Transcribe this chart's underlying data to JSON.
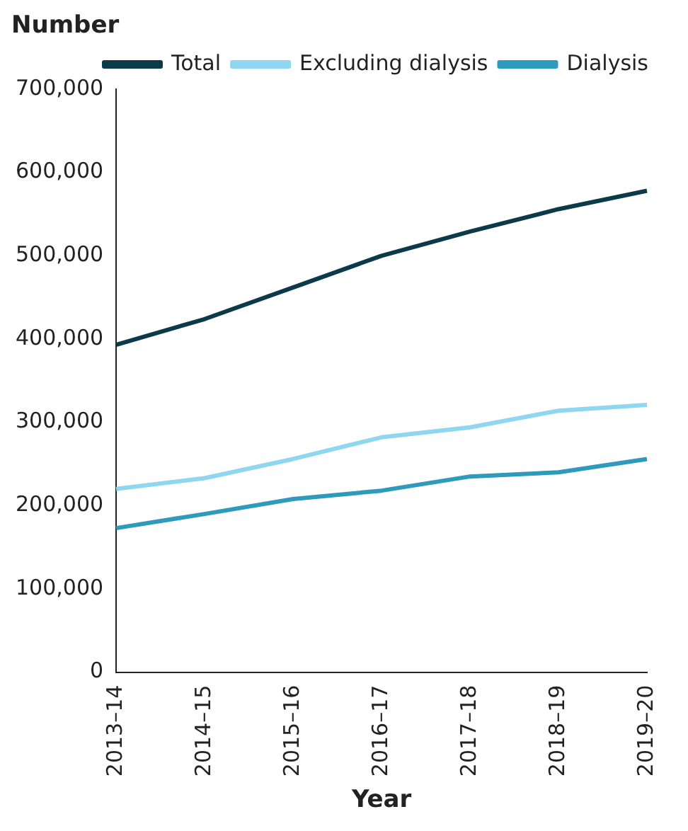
{
  "chart_data": {
    "type": "line",
    "ylabel": "Number",
    "xlabel": "Year",
    "categories": [
      "2013–14",
      "2014–15",
      "2015–16",
      "2016–17",
      "2017–18",
      "2018–19",
      "2019–20"
    ],
    "series": [
      {
        "name": "Total",
        "color": "#0b3a4a",
        "values": [
          393000,
          424000,
          462000,
          500000,
          529000,
          556000,
          578000
        ]
      },
      {
        "name": "Excluding dialysis",
        "color": "#8fd6f0",
        "values": [
          220000,
          233000,
          256000,
          282000,
          294000,
          314000,
          321000
        ]
      },
      {
        "name": "Dialysis",
        "color": "#2e9bbd",
        "values": [
          173000,
          190000,
          208000,
          218000,
          235000,
          240000,
          256000
        ]
      }
    ],
    "ylim": [
      0,
      700000
    ],
    "yticks": [
      {
        "value": 0,
        "label": "0"
      },
      {
        "value": 100000,
        "label": "100,000"
      },
      {
        "value": 200000,
        "label": "200,000"
      },
      {
        "value": 300000,
        "label": "300,000"
      },
      {
        "value": 400000,
        "label": "400,000"
      },
      {
        "value": 500000,
        "label": "500,000"
      },
      {
        "value": 600000,
        "label": "600,000"
      },
      {
        "value": 700000,
        "label": "700,000"
      }
    ],
    "grid": false,
    "legend": "top",
    "marker": "none",
    "line_style": "solid"
  }
}
